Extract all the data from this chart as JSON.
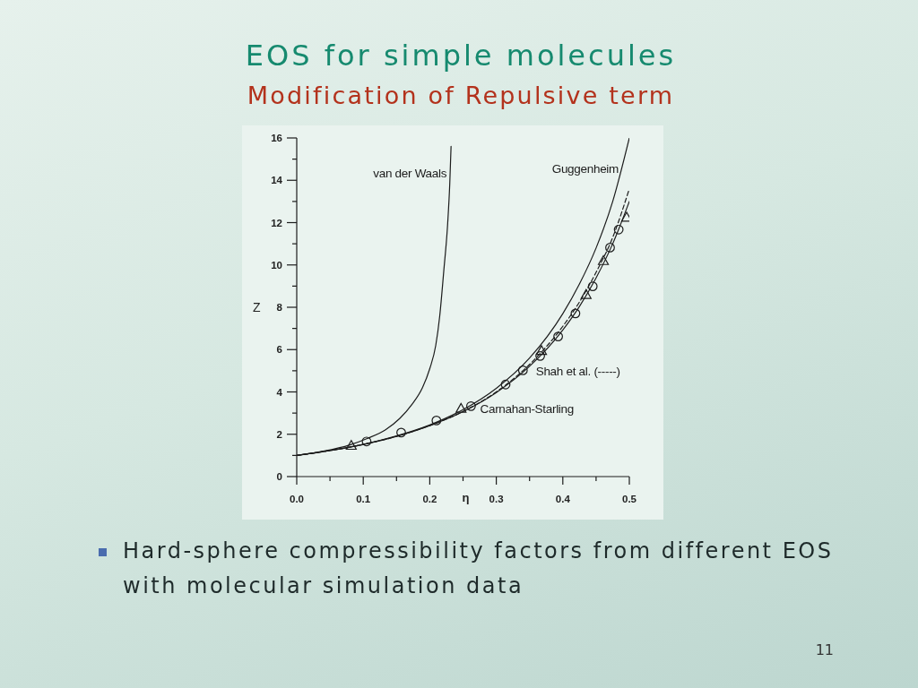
{
  "chart_data": {
    "type": "line",
    "title": "EOS for simple molecules",
    "subtitle": "Modification of Repulsive term",
    "xlabel": "η",
    "ylabel": "Z",
    "annotations": [
      "Hard-sphere compressibility factors from different EOS with molecular simulation data",
      "11"
    ],
    "xlim": [
      0,
      0.5
    ],
    "ylim": [
      0,
      16
    ],
    "xticks": [
      {
        "value": 0,
        "label": "0.0"
      },
      {
        "value": 0.05,
        "label": null
      },
      0.1,
      {
        "value": 0.15,
        "label": null
      },
      0.2,
      {
        "value": 0.25,
        "label": null
      },
      0.3,
      {
        "value": 0.35,
        "label": null
      },
      0.4,
      {
        "value": 0.45,
        "label": null
      },
      0.5
    ],
    "yticks": [
      0,
      {
        "value": 1,
        "label": null
      },
      2,
      {
        "value": 3,
        "label": null
      },
      4,
      {
        "value": 5,
        "label": null
      },
      6,
      {
        "value": 7,
        "label": null
      },
      8,
      {
        "value": 9,
        "label": null
      },
      10,
      {
        "value": 11,
        "label": null
      },
      12,
      {
        "value": 13,
        "label": null
      },
      14,
      {
        "value": 15,
        "label": null
      },
      16
    ],
    "series": [
      {
        "name": "van der Waals",
        "color": "#1c1c1c",
        "marker": "none",
        "line_style": "solid",
        "x": [
          0,
          0.04,
          0.08,
          0.106,
          0.133,
          0.155,
          0.173,
          0.189,
          0.2,
          0.209,
          0.215,
          0.221,
          0.227,
          0.23,
          0.232
        ],
        "values": [
          1.0,
          1.2,
          1.5,
          1.8,
          2.2,
          2.75,
          3.4,
          4.2,
          5.1,
          6.2,
          7.6,
          9.7,
          12.0,
          13.8,
          15.6
        ]
      },
      {
        "name": "Guggenheim",
        "color": "#1c1c1c",
        "marker": "none",
        "line_style": "solid",
        "x": [
          0,
          0.05,
          0.1,
          0.15,
          0.2,
          0.25,
          0.3,
          0.35,
          0.4,
          0.425,
          0.45,
          0.475,
          0.5
        ],
        "values": [
          1.0,
          1.23,
          1.52,
          1.92,
          2.44,
          3.16,
          4.17,
          5.6,
          7.7,
          9.1,
          10.8,
          13.0,
          16.0
        ]
      },
      {
        "name": "Carnahan-Starling",
        "color": "#1c1c1c",
        "marker": "none",
        "line_style": "solid",
        "x": [
          0,
          0.05,
          0.1,
          0.15,
          0.2,
          0.25,
          0.3,
          0.35,
          0.4,
          0.425,
          0.45,
          0.475,
          0.5
        ],
        "values": [
          1.0,
          1.23,
          1.52,
          1.9,
          2.41,
          3.07,
          3.97,
          5.21,
          6.93,
          8.04,
          9.39,
          11.0,
          13.0
        ]
      },
      {
        "name": "Shah et al. (-----)",
        "color": "#1c1c1c",
        "marker": "none",
        "line_style": "dashed",
        "x": [
          0,
          0.05,
          0.1,
          0.15,
          0.2,
          0.25,
          0.3,
          0.35,
          0.4,
          0.425,
          0.45,
          0.475,
          0.5
        ],
        "values": [
          1.0,
          1.23,
          1.52,
          1.9,
          2.41,
          3.08,
          4.0,
          5.3,
          7.1,
          8.25,
          9.65,
          11.3,
          13.6
        ]
      },
      {
        "type": "scatter",
        "color": "#1c1c1c",
        "marker": "circle",
        "x": [
          0.105,
          0.157,
          0.21,
          0.262,
          0.314,
          0.34,
          0.366,
          0.393,
          0.419,
          0.445,
          0.471,
          0.484
        ],
        "values": [
          1.66,
          2.08,
          2.65,
          3.33,
          4.35,
          5.02,
          5.7,
          6.62,
          7.71,
          8.99,
          10.82,
          11.67
        ]
      },
      {
        "type": "scatter",
        "color": "#1c1c1c",
        "marker": "triangle",
        "x": [
          0.082,
          0.247,
          0.368,
          0.435,
          0.461,
          0.496
        ],
        "values": [
          1.46,
          3.21,
          5.94,
          8.59,
          10.19,
          12.24
        ]
      }
    ]
  }
}
